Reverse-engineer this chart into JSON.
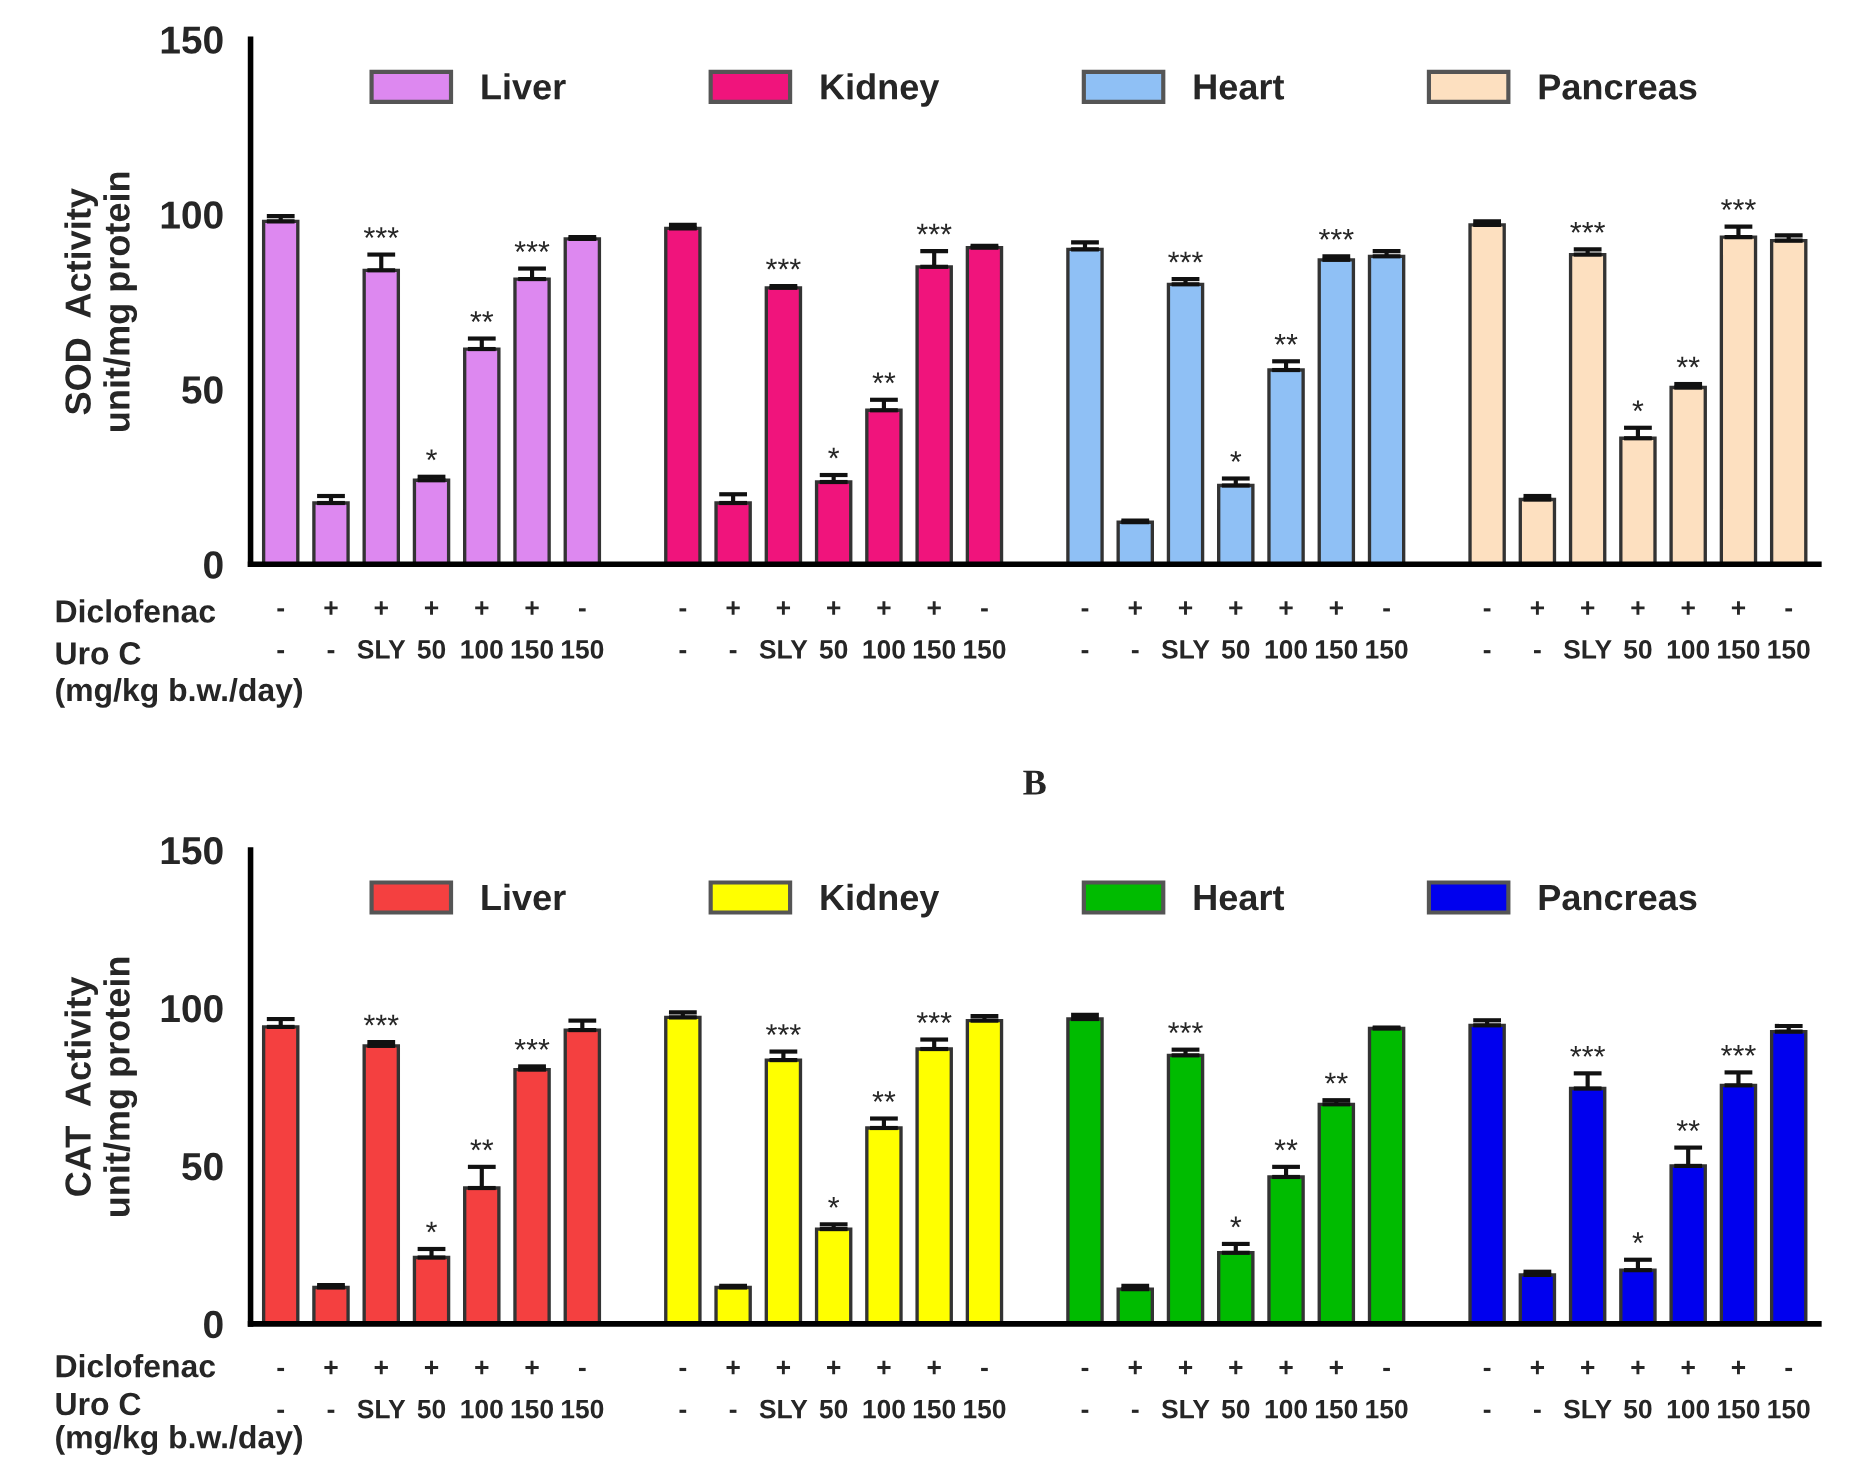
{
  "chart_data": [
    {
      "type": "bar",
      "ylabel": "SOD  Activity\nunit/mg protein",
      "ylim": [
        0,
        150
      ],
      "yticks": [
        0,
        50,
        100,
        150
      ],
      "legend": "top",
      "grid": false,
      "categories": [
        "-\n-",
        "+\n-",
        "+\nSLY",
        "+\n50",
        "+\n100",
        "+\n150",
        "-\n150",
        null,
        "-\n-",
        "+\n-",
        "+\nSLY",
        "+\n50",
        "+\n100",
        "+\n150",
        "-\n150",
        null,
        "-\n-",
        "+\n-",
        "+\nSLY",
        "+\n50",
        "+\n100",
        "+\n150",
        "-\n150",
        null,
        "-\n-",
        "+\n-",
        "+\nSLY",
        "+\n50",
        "+\n100",
        "+\n150",
        "-\n150"
      ],
      "annotations": [
        "Diclofenac",
        "Uro C",
        "(mg/kg b.w./day)"
      ],
      "series": [
        {
          "name": "Liver",
          "color": "#dd88f0",
          "values": [
            98,
            17.5,
            84,
            24,
            61.5,
            81.5,
            93,
            null,
            null,
            null,
            null,
            null,
            null,
            null,
            null,
            null,
            null,
            null,
            null,
            null,
            null,
            null,
            null,
            null,
            null,
            null,
            null,
            null,
            null,
            null,
            null
          ],
          "errors": [
            [
              98,
              99.5
            ],
            [
              17.5,
              19.5
            ],
            [
              84,
              88.5
            ],
            [
              24,
              25
            ],
            [
              61.5,
              64.5
            ],
            [
              81.5,
              84.5
            ],
            [
              93,
              93.5
            ],
            null,
            null,
            null,
            null,
            null,
            null,
            null,
            null,
            null,
            null,
            null,
            null,
            null,
            null,
            null,
            null,
            null,
            null,
            null,
            null,
            null,
            null,
            null,
            null
          ],
          "value_labels": [
            null,
            null,
            "***",
            "*",
            "**",
            "***",
            null,
            null,
            null,
            null,
            null,
            null,
            null,
            null,
            null,
            null,
            null,
            null,
            null,
            null,
            null,
            null,
            null,
            null,
            null,
            null,
            null,
            null,
            null,
            null,
            null
          ]
        },
        {
          "name": "Kidney",
          "color": "#f0147c",
          "values": [
            null,
            null,
            null,
            null,
            null,
            null,
            null,
            null,
            96,
            17.5,
            79,
            23.5,
            44,
            85,
            90.5,
            null,
            null,
            null,
            null,
            null,
            null,
            null,
            null,
            null,
            null,
            null,
            null,
            null,
            null,
            null,
            null
          ],
          "errors": [
            null,
            null,
            null,
            null,
            null,
            null,
            null,
            null,
            [
              96,
              97
            ],
            [
              17.5,
              20
            ],
            [
              79,
              79.5
            ],
            [
              23.5,
              25.5
            ],
            [
              44,
              47
            ],
            [
              85,
              89.5
            ],
            [
              90.5,
              91
            ],
            null,
            null,
            null,
            null,
            null,
            null,
            null,
            null,
            null,
            null,
            null,
            null,
            null,
            null,
            null,
            null
          ],
          "value_labels": [
            null,
            null,
            null,
            null,
            null,
            null,
            null,
            null,
            null,
            null,
            "***",
            "*",
            "**",
            "***",
            null,
            null,
            null,
            null,
            null,
            null,
            null,
            null,
            null,
            null,
            null,
            null,
            null,
            null,
            null,
            null,
            null
          ]
        },
        {
          "name": "Heart",
          "color": "#8fc0f5",
          "values": [
            null,
            null,
            null,
            null,
            null,
            null,
            null,
            null,
            null,
            null,
            null,
            null,
            null,
            null,
            null,
            null,
            90,
            12,
            80,
            22.5,
            55.5,
            87,
            88,
            null,
            null,
            null,
            null,
            null,
            null,
            null,
            null
          ],
          "errors": [
            null,
            null,
            null,
            null,
            null,
            null,
            null,
            null,
            null,
            null,
            null,
            null,
            null,
            null,
            null,
            null,
            [
              90,
              92
            ],
            [
              12,
              12.5
            ],
            [
              80,
              81.5
            ],
            [
              22.5,
              24.5
            ],
            [
              55.5,
              58
            ],
            [
              87,
              88
            ],
            [
              88,
              89.5
            ],
            null,
            null,
            null,
            null,
            null,
            null,
            null,
            null
          ],
          "value_labels": [
            null,
            null,
            null,
            null,
            null,
            null,
            null,
            null,
            null,
            null,
            null,
            null,
            null,
            null,
            null,
            null,
            null,
            null,
            "***",
            "*",
            "**",
            "***",
            null,
            null,
            null,
            null,
            null,
            null,
            null,
            null,
            null
          ]
        },
        {
          "name": "Pancreas",
          "color": "#fde0c0",
          "values": [
            null,
            null,
            null,
            null,
            null,
            null,
            null,
            null,
            null,
            null,
            null,
            null,
            null,
            null,
            null,
            null,
            null,
            null,
            null,
            null,
            null,
            null,
            null,
            null,
            97,
            18.5,
            88.5,
            36,
            50.5,
            93.5,
            92.5
          ],
          "errors": [
            null,
            null,
            null,
            null,
            null,
            null,
            null,
            null,
            null,
            null,
            null,
            null,
            null,
            null,
            null,
            null,
            null,
            null,
            null,
            null,
            null,
            null,
            null,
            null,
            [
              97,
              98
            ],
            [
              18.5,
              19.5
            ],
            [
              88.5,
              90
            ],
            [
              36,
              39
            ],
            [
              50.5,
              51.5
            ],
            [
              93.5,
              96.5
            ],
            [
              92.5,
              94
            ]
          ],
          "value_labels": [
            null,
            null,
            null,
            null,
            null,
            null,
            null,
            null,
            null,
            null,
            null,
            null,
            null,
            null,
            null,
            null,
            null,
            null,
            null,
            null,
            null,
            null,
            null,
            null,
            null,
            null,
            "***",
            "*",
            "**",
            "***",
            null
          ]
        }
      ]
    },
    {
      "type": "bar",
      "title": "B",
      "ylabel": "CAT  Activity\nunit/mg protein",
      "ylim": [
        0,
        150
      ],
      "yticks": [
        0,
        50,
        100,
        150
      ],
      "legend": "top",
      "grid": false,
      "categories": [
        "-\n-",
        "+\n-",
        "+\nSLY",
        "+\n50",
        "+\n100",
        "+\n150",
        "-\n150",
        null,
        "-\n-",
        "+\n-",
        "+\nSLY",
        "+\n50",
        "+\n100",
        "+\n150",
        "-\n150",
        null,
        "-\n-",
        "+\n-",
        "+\nSLY",
        "+\n50",
        "+\n100",
        "+\n150",
        "-\n150",
        null,
        "-\n-",
        "+\n-",
        "+\nSLY",
        "+\n50",
        "+\n100",
        "+\n150",
        "-\n150"
      ],
      "annotations": [
        "Diclofenac",
        "Uro C",
        "(mg/kg b.w./day)"
      ],
      "series": [
        {
          "name": "Liver",
          "color": "#f44040",
          "values": [
            94,
            11.5,
            88,
            21,
            43,
            80.5,
            93,
            null,
            null,
            null,
            null,
            null,
            null,
            null,
            null,
            null,
            null,
            null,
            null,
            null,
            null,
            null,
            null,
            null,
            null,
            null,
            null,
            null,
            null,
            null,
            null
          ],
          "errors": [
            [
              94,
              96.5
            ],
            [
              11.5,
              12.3
            ],
            [
              88,
              89.2
            ],
            [
              21,
              23.7
            ],
            [
              43,
              49.7
            ],
            [
              80.5,
              81.5
            ],
            [
              93,
              96
            ],
            null,
            null,
            null,
            null,
            null,
            null,
            null,
            null,
            null,
            null,
            null,
            null,
            null,
            null,
            null,
            null,
            null,
            null,
            null,
            null,
            null,
            null,
            null,
            null
          ],
          "value_labels": [
            null,
            null,
            "***",
            "*",
            "**",
            "***",
            null,
            null,
            null,
            null,
            null,
            null,
            null,
            null,
            null,
            null,
            null,
            null,
            null,
            null,
            null,
            null,
            null,
            null,
            null,
            null,
            null,
            null,
            null,
            null,
            null
          ]
        },
        {
          "name": "Kidney",
          "color": "#ffff00",
          "values": [
            null,
            null,
            null,
            null,
            null,
            null,
            null,
            null,
            97,
            11.5,
            83.5,
            30,
            62,
            87,
            96,
            null,
            null,
            null,
            null,
            null,
            null,
            null,
            null,
            null,
            null,
            null,
            null,
            null,
            null,
            null,
            null
          ],
          "errors": [
            null,
            null,
            null,
            null,
            null,
            null,
            null,
            null,
            [
              97,
              98.6
            ],
            [
              11.5,
              12
            ],
            [
              83.5,
              86.2
            ],
            [
              30,
              31.5
            ],
            [
              62,
              65
            ],
            [
              87,
              90
            ],
            [
              96,
              97.4
            ],
            null,
            null,
            null,
            null,
            null,
            null,
            null,
            null,
            null,
            null,
            null,
            null,
            null,
            null,
            null,
            null
          ],
          "value_labels": [
            null,
            null,
            null,
            null,
            null,
            null,
            null,
            null,
            null,
            null,
            "***",
            "*",
            "**",
            "***",
            null,
            null,
            null,
            null,
            null,
            null,
            null,
            null,
            null,
            null,
            null,
            null,
            null,
            null,
            null,
            null,
            null
          ]
        },
        {
          "name": "Heart",
          "color": "#00bb00",
          "values": [
            null,
            null,
            null,
            null,
            null,
            null,
            null,
            null,
            null,
            null,
            null,
            null,
            null,
            null,
            null,
            null,
            96.5,
            11,
            85,
            22.5,
            46.5,
            69.5,
            93.5,
            null,
            null,
            null,
            null,
            null,
            null,
            null,
            null
          ],
          "errors": [
            null,
            null,
            null,
            null,
            null,
            null,
            null,
            null,
            null,
            null,
            null,
            null,
            null,
            null,
            null,
            null,
            [
              96.5,
              97.8
            ],
            [
              11,
              12
            ],
            [
              85,
              86.8
            ],
            [
              22.5,
              25.3
            ],
            [
              46.5,
              49.7
            ],
            [
              69.5,
              70.8
            ],
            [
              93.5,
              93.8
            ],
            null,
            null,
            null,
            null,
            null,
            null,
            null,
            null
          ],
          "value_labels": [
            null,
            null,
            null,
            null,
            null,
            null,
            null,
            null,
            null,
            null,
            null,
            null,
            null,
            null,
            null,
            null,
            null,
            null,
            "***",
            "*",
            "**",
            "**",
            null,
            null,
            null,
            null,
            null,
            null,
            null,
            null,
            null
          ]
        },
        {
          "name": "Pancreas",
          "color": "#0000ee",
          "values": [
            null,
            null,
            null,
            null,
            null,
            null,
            null,
            null,
            null,
            null,
            null,
            null,
            null,
            null,
            null,
            null,
            null,
            null,
            null,
            null,
            null,
            null,
            null,
            null,
            94.5,
            15.5,
            74.5,
            17,
            50,
            75.5,
            92.5
          ],
          "errors": [
            null,
            null,
            null,
            null,
            null,
            null,
            null,
            null,
            null,
            null,
            null,
            null,
            null,
            null,
            null,
            null,
            null,
            null,
            null,
            null,
            null,
            null,
            null,
            null,
            [
              94.5,
              96.1
            ],
            [
              15.5,
              16.5
            ],
            [
              74.5,
              79.3
            ],
            [
              17,
              20.3
            ],
            [
              50,
              55.8
            ],
            [
              75.5,
              79.6
            ],
            [
              92.5,
              94.3
            ]
          ],
          "value_labels": [
            null,
            null,
            null,
            null,
            null,
            null,
            null,
            null,
            null,
            null,
            null,
            null,
            null,
            null,
            null,
            null,
            null,
            null,
            null,
            null,
            null,
            null,
            null,
            null,
            null,
            null,
            "***",
            "*",
            "**",
            "***",
            null
          ]
        }
      ]
    }
  ]
}
